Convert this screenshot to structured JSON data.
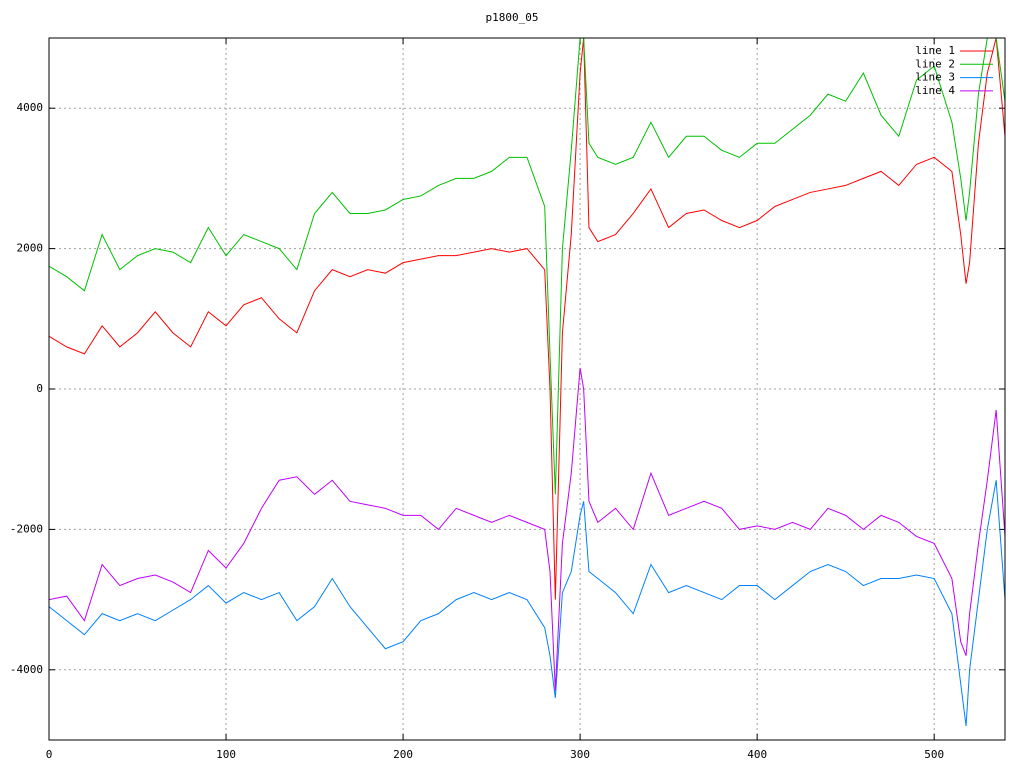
{
  "chart_data": {
    "type": "line",
    "title": "p1800_05",
    "x": [
      0,
      10,
      20,
      30,
      40,
      50,
      60,
      70,
      80,
      90,
      100,
      110,
      120,
      130,
      140,
      150,
      160,
      170,
      180,
      190,
      200,
      210,
      220,
      230,
      240,
      250,
      260,
      270,
      280,
      283,
      286,
      290,
      295,
      300,
      302,
      305,
      310,
      320,
      330,
      340,
      350,
      360,
      370,
      380,
      390,
      400,
      410,
      420,
      430,
      440,
      450,
      460,
      470,
      480,
      490,
      500,
      510,
      515,
      518,
      520,
      525,
      530,
      535,
      540
    ],
    "series": [
      {
        "name": "line 1",
        "color": "#ff0000",
        "values": [
          750,
          600,
          500,
          900,
          600,
          800,
          1100,
          800,
          600,
          1100,
          900,
          1200,
          1300,
          1000,
          800,
          1400,
          1700,
          1600,
          1700,
          1650,
          1800,
          1850,
          1900,
          1900,
          1950,
          2000,
          1950,
          2000,
          1700,
          0,
          -3000,
          800,
          2200,
          4500,
          5000,
          2300,
          2100,
          2200,
          2500,
          2850,
          2300,
          2500,
          2550,
          2400,
          2300,
          2400,
          2600,
          2700,
          2800,
          2850,
          2900,
          3000,
          3100,
          2900,
          3200,
          3300,
          3100,
          2200,
          1500,
          1800,
          3500,
          4500,
          5000,
          3600
        ]
      },
      {
        "name": "line 2",
        "color": "#00c000",
        "values": [
          1750,
          1600,
          1400,
          2200,
          1700,
          1900,
          2000,
          1950,
          1800,
          2300,
          1900,
          2200,
          2100,
          2000,
          1700,
          2500,
          2800,
          2500,
          2500,
          2550,
          2700,
          2750,
          2900,
          3000,
          3000,
          3100,
          3300,
          3300,
          2600,
          500,
          -1500,
          2000,
          3400,
          5000,
          5000,
          3500,
          3300,
          3200,
          3300,
          3800,
          3300,
          3600,
          3600,
          3400,
          3300,
          3500,
          3500,
          3700,
          3900,
          4200,
          4100,
          4500,
          3900,
          3600,
          4400,
          4600,
          3800,
          3000,
          2400,
          2800,
          4200,
          5000,
          5000,
          4100
        ]
      },
      {
        "name": "line 3",
        "color": "#0080ff",
        "values": [
          -3100,
          -3300,
          -3500,
          -3200,
          -3300,
          -3200,
          -3300,
          -3150,
          -3000,
          -2800,
          -3050,
          -2900,
          -3000,
          -2900,
          -3300,
          -3100,
          -2700,
          -3100,
          -3400,
          -3700,
          -3600,
          -3300,
          -3200,
          -3000,
          -2900,
          -3000,
          -2900,
          -3000,
          -3400,
          -3800,
          -4400,
          -2900,
          -2600,
          -1800,
          -1600,
          -2600,
          -2700,
          -2900,
          -3200,
          -2500,
          -2900,
          -2800,
          -2900,
          -3000,
          -2800,
          -2800,
          -3000,
          -2800,
          -2600,
          -2500,
          -2600,
          -2800,
          -2700,
          -2700,
          -2650,
          -2700,
          -3200,
          -4200,
          -4800,
          -4000,
          -3000,
          -2000,
          -1300,
          -3000
        ]
      },
      {
        "name": "line 4",
        "color": "#c000ff",
        "values": [
          -3000,
          -2950,
          -3300,
          -2500,
          -2800,
          -2700,
          -2650,
          -2750,
          -2900,
          -2300,
          -2550,
          -2200,
          -1700,
          -1300,
          -1250,
          -1500,
          -1300,
          -1600,
          -1650,
          -1700,
          -1800,
          -1800,
          -2000,
          -1700,
          -1800,
          -1900,
          -1800,
          -1900,
          -2000,
          -2600,
          -4300,
          -2200,
          -1200,
          300,
          0,
          -1600,
          -1900,
          -1700,
          -2000,
          -1200,
          -1800,
          -1700,
          -1600,
          -1700,
          -2000,
          -1950,
          -2000,
          -1900,
          -2000,
          -1700,
          -1800,
          -2000,
          -1800,
          -1900,
          -2100,
          -2200,
          -2700,
          -3600,
          -3800,
          -3200,
          -2200,
          -1300,
          -300,
          -2100
        ]
      }
    ],
    "xlim": [
      0,
      540
    ],
    "xticks": [
      0,
      100,
      200,
      300,
      400,
      500
    ],
    "ylim": [
      -5000,
      5000
    ],
    "yticks": [
      -4000,
      -2000,
      0,
      2000,
      4000
    ],
    "grid": true,
    "legend": "upper right"
  }
}
